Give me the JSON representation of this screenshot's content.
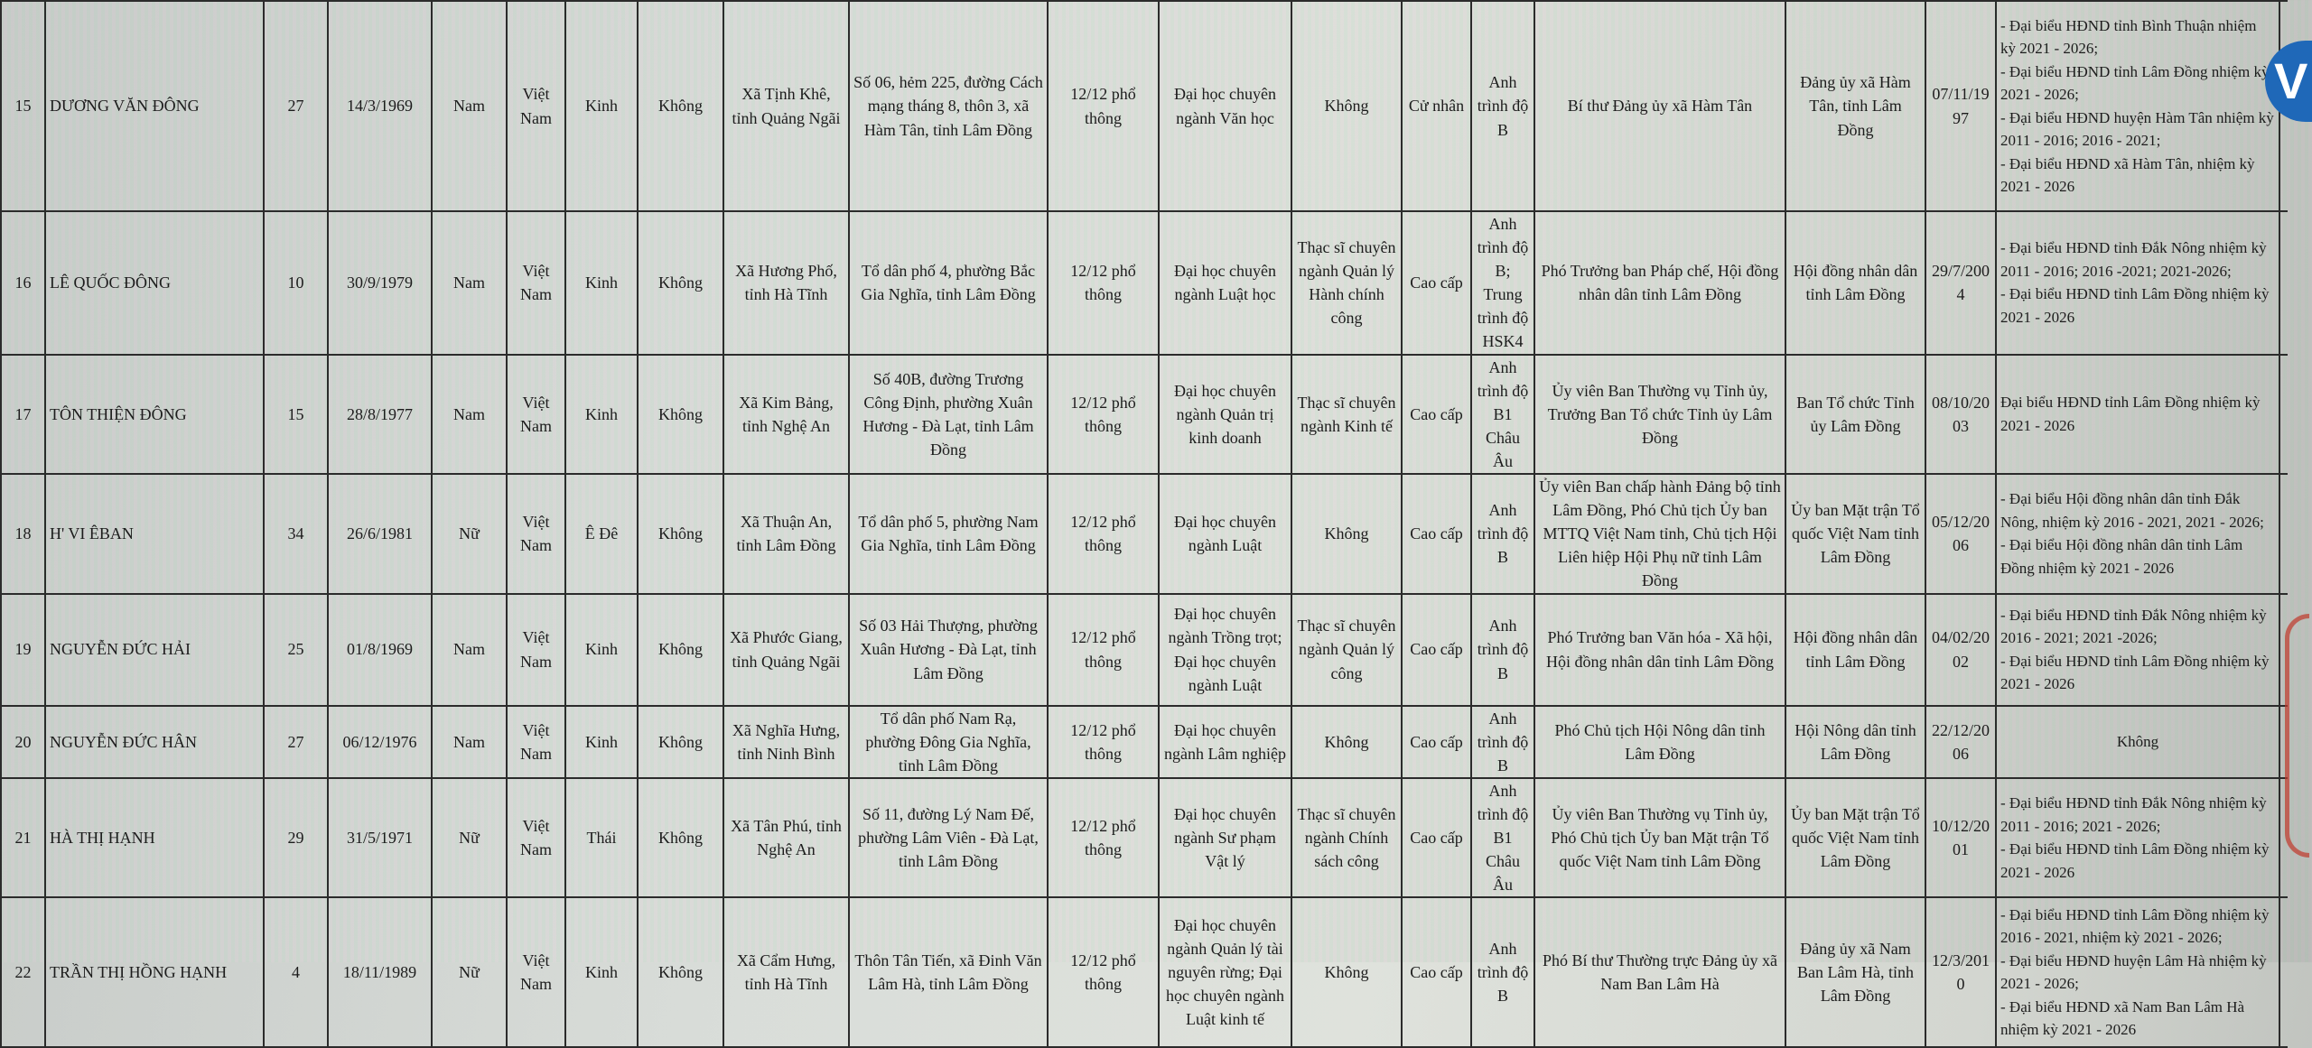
{
  "rows": [
    {
      "stt": "15",
      "name": "DƯƠNG VĂN ĐÔNG",
      "unit": "27",
      "dob": "14/3/1969",
      "sex": "Nam",
      "nationality": "Việt Nam",
      "ethnic": "Kinh",
      "religion": "Không",
      "hometown": "Xã Tịnh Khê, tỉnh Quảng Ngãi",
      "residence": "Số 06, hẻm 225, đường Cách mạng tháng 8, thôn 3, xã Hàm Tân, tỉnh Lâm Đồng",
      "general_edu": "12/12 phổ thông",
      "degree": "Đại học chuyên ngành Văn học",
      "postgrad": "Không",
      "political": "Cử nhân",
      "language": "Anh trình độ B",
      "position": "Bí thư Đảng ủy xã Hàm Tân",
      "workplace": "Đảng ủy xã Hàm Tân, tỉnh Lâm Đồng",
      "party_date": "07/11/1997",
      "delegate": [
        "- Đại biểu HĐND tỉnh Bình Thuận nhiệm kỳ 2021 - 2026;",
        "- Đại biểu HĐND tỉnh Lâm Đồng nhiệm kỳ 2021 - 2026;",
        "- Đại biểu HĐND huyện Hàm Tân nhiệm kỳ 2011 - 2016; 2016 - 2021;",
        "- Đại biểu HĐND xã Hàm Tân, nhiệm kỳ 2021 - 2026"
      ]
    },
    {
      "stt": "16",
      "name": "LÊ QUỐC ĐÔNG",
      "unit": "10",
      "dob": "30/9/1979",
      "sex": "Nam",
      "nationality": "Việt Nam",
      "ethnic": "Kinh",
      "religion": "Không",
      "hometown": "Xã Hương Phố, tỉnh Hà Tĩnh",
      "residence": "Tổ dân phố 4, phường Bắc Gia Nghĩa, tỉnh Lâm Đồng",
      "general_edu": "12/12 phổ thông",
      "degree": "Đại học chuyên ngành Luật học",
      "postgrad": "Thạc sĩ chuyên ngành Quản lý Hành chính công",
      "political": "Cao cấp",
      "language": "Anh trình độ B; Trung trình độ HSK4",
      "position": "Phó Trưởng ban Pháp chế, Hội đồng nhân dân tỉnh Lâm Đồng",
      "workplace": "Hội đồng nhân dân tỉnh Lâm Đồng",
      "party_date": "29/7/2004",
      "delegate": [
        "- Đại biểu HĐND tỉnh Đắk Nông nhiệm kỳ 2011 - 2016; 2016 -2021; 2021-2026;",
        "- Đại biểu HĐND tỉnh Lâm Đồng nhiệm kỳ 2021 - 2026"
      ]
    },
    {
      "stt": "17",
      "name": "TÔN THIỆN ĐÔNG",
      "unit": "15",
      "dob": "28/8/1977",
      "sex": "Nam",
      "nationality": "Việt Nam",
      "ethnic": "Kinh",
      "religion": "Không",
      "hometown": "Xã Kim Bảng, tỉnh Nghệ An",
      "residence": "Số 40B, đường Trương Công Định, phường Xuân Hương - Đà Lạt, tỉnh Lâm Đồng",
      "general_edu": "12/12 phổ thông",
      "degree": "Đại học chuyên ngành Quản trị kinh doanh",
      "postgrad": "Thạc sĩ chuyên ngành Kinh tế",
      "political": "Cao cấp",
      "language": "Anh trình độ B1 Châu Âu",
      "position": "Ủy viên Ban Thường vụ Tỉnh ủy, Trưởng Ban Tổ chức Tỉnh ủy Lâm Đồng",
      "workplace": "Ban Tổ chức Tỉnh ủy Lâm Đồng",
      "party_date": "08/10/2003",
      "delegate": [
        "Đại biểu HĐND tỉnh Lâm Đồng nhiệm kỳ 2021 - 2026"
      ]
    },
    {
      "stt": "18",
      "name": "H' VI ÊBAN",
      "unit": "34",
      "dob": "26/6/1981",
      "sex": "Nữ",
      "nationality": "Việt Nam",
      "ethnic": "Ê Đê",
      "religion": "Không",
      "hometown": "Xã Thuận An, tỉnh Lâm Đồng",
      "residence": "Tổ dân phố 5, phường Nam Gia Nghĩa, tỉnh Lâm Đồng",
      "general_edu": "12/12 phổ thông",
      "degree": "Đại học chuyên ngành Luật",
      "postgrad": "Không",
      "political": "Cao cấp",
      "language": "Anh trình độ B",
      "position": "Ủy viên Ban chấp hành Đảng bộ tỉnh Lâm Đồng, Phó Chủ tịch Ủy ban MTTQ Việt Nam tỉnh, Chủ tịch Hội Liên hiệp Hội Phụ nữ tỉnh Lâm Đồng",
      "workplace": "Ủy ban Mặt trận Tổ quốc Việt Nam tỉnh Lâm Đồng",
      "party_date": "05/12/2006",
      "delegate": [
        "- Đại biểu Hội đồng nhân dân tỉnh Đắk Nông, nhiệm kỳ 2016 - 2021, 2021 - 2026;",
        "- Đại biểu Hội đồng nhân dân tỉnh Lâm Đồng nhiệm kỳ 2021 - 2026"
      ]
    },
    {
      "stt": "19",
      "name": "NGUYỄN ĐỨC HẢI",
      "unit": "25",
      "dob": "01/8/1969",
      "sex": "Nam",
      "nationality": "Việt Nam",
      "ethnic": "Kinh",
      "religion": "Không",
      "hometown": "Xã Phước Giang, tỉnh Quảng Ngãi",
      "residence": "Số 03 Hải Thượng, phường Xuân Hương - Đà Lạt, tỉnh Lâm Đồng",
      "general_edu": "12/12 phổ thông",
      "degree": "Đại học chuyên ngành Trồng trọt; Đại học chuyên ngành Luật",
      "postgrad": "Thạc sĩ chuyên ngành Quản lý công",
      "political": "Cao cấp",
      "language": "Anh trình độ B",
      "position": "Phó Trưởng ban Văn hóa - Xã hội, Hội đồng nhân dân tỉnh Lâm Đồng",
      "workplace": "Hội đồng nhân dân tỉnh Lâm Đồng",
      "party_date": "04/02/2002",
      "delegate": [
        "- Đại biểu HĐND tỉnh Đắk Nông nhiệm kỳ 2016 - 2021; 2021 -2026;",
        "- Đại biểu HĐND tỉnh Lâm Đồng nhiệm kỳ 2021 - 2026"
      ]
    },
    {
      "stt": "20",
      "name": "NGUYỄN ĐỨC HÂN",
      "unit": "27",
      "dob": "06/12/1976",
      "sex": "Nam",
      "nationality": "Việt Nam",
      "ethnic": "Kinh",
      "religion": "Không",
      "hometown": "Xã Nghĩa Hưng, tỉnh Ninh Bình",
      "residence": "Tổ dân phố Nam Rạ, phường Đông Gia Nghĩa, tỉnh Lâm Đồng",
      "general_edu": "12/12 phổ thông",
      "degree": "Đại học chuyên ngành Lâm nghiệp",
      "postgrad": "Không",
      "political": "Cao cấp",
      "language": "Anh trình độ B",
      "position": "Phó Chủ tịch Hội Nông dân tỉnh Lâm Đồng",
      "workplace": "Hội Nông dân tỉnh Lâm Đồng",
      "party_date": "22/12/2006",
      "delegate": [
        "Không"
      ]
    },
    {
      "stt": "21",
      "name": "HÀ THỊ HẠNH",
      "unit": "29",
      "dob": "31/5/1971",
      "sex": "Nữ",
      "nationality": "Việt Nam",
      "ethnic": "Thái",
      "religion": "Không",
      "hometown": "Xã Tân Phú, tỉnh Nghệ An",
      "residence": "Số 11, đường Lý Nam Đế, phường Lâm Viên - Đà Lạt, tỉnh Lâm Đồng",
      "general_edu": "12/12 phổ thông",
      "degree": "Đại học chuyên ngành Sư phạm Vật lý",
      "postgrad": "Thạc sĩ chuyên ngành Chính sách công",
      "political": "Cao cấp",
      "language": "Anh trình độ B1 Châu Âu",
      "position": "Ủy viên Ban Thường vụ Tỉnh ủy, Phó Chủ tịch Ủy ban Mặt trận Tổ quốc Việt Nam tỉnh Lâm Đồng",
      "workplace": "Ủy ban Mặt trận Tổ quốc Việt Nam tỉnh Lâm Đồng",
      "party_date": "10/12/2001",
      "delegate": [
        "- Đại biểu HĐND tỉnh Đắk Nông nhiệm kỳ 2011 - 2016; 2021 - 2026;",
        "- Đại biểu HĐND tỉnh Lâm Đồng nhiệm kỳ 2021 - 2026"
      ]
    },
    {
      "stt": "22",
      "name": "TRẦN THỊ HỒNG HẠNH",
      "unit": "4",
      "dob": "18/11/1989",
      "sex": "Nữ",
      "nationality": "Việt Nam",
      "ethnic": "Kinh",
      "religion": "Không",
      "hometown": "Xã Cẩm Hưng, tỉnh Hà Tĩnh",
      "residence": "Thôn Tân Tiến, xã Đinh Văn Lâm Hà, tỉnh Lâm Đồng",
      "general_edu": "12/12 phổ thông",
      "degree": "Đại học chuyên ngành Quản lý tài nguyên rừng; Đại học chuyên ngành Luật kinh tế",
      "postgrad": "Không",
      "political": "Cao cấp",
      "language": "Anh trình độ B",
      "position": "Phó Bí thư Thường trực Đảng ủy xã Nam Ban Lâm Hà",
      "workplace": "Đảng ủy xã Nam Ban Lâm Hà, tỉnh Lâm Đồng",
      "party_date": "12/3/2010",
      "delegate": [
        "- Đại biểu HĐND tỉnh Lâm Đồng nhiệm kỳ 2016 - 2021, nhiệm kỳ 2021 - 2026;",
        "- Đại biểu HĐND huyện Lâm Hà nhiệm kỳ 2021 - 2026;",
        "- Đại biểu HĐND xã Nam Ban Lâm Hà nhiệm kỳ 2021 - 2026"
      ]
    }
  ],
  "badge": {
    "letter": "V",
    "color": "#1f68b8"
  },
  "stamp": {
    "color": "#c0392b"
  }
}
